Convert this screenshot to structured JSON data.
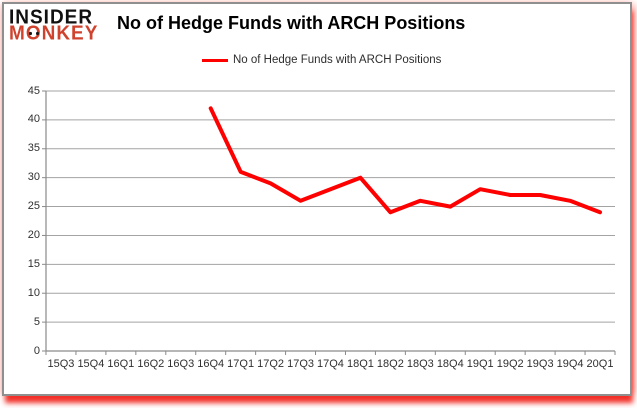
{
  "logo": {
    "line1": "INSIDER",
    "monkey_pre": "M",
    "monkey_o": "O",
    "monkey_post": "NKEY",
    "monkey_color": "#cf432e"
  },
  "title": "No of Hedge Funds with ARCH Positions",
  "legend": {
    "label": "No of Hedge Funds with ARCH Positions",
    "line_color": "#ff0000"
  },
  "colors": {
    "series_red": "#ff0000",
    "gridline": "#a3a3a3",
    "axis": "#8a8a8a",
    "tick_label": "#303030",
    "frame_border": "#8f8f8f",
    "shadow_red": "#f0160c"
  },
  "chart_data": {
    "type": "line",
    "title": "No of Hedge Funds with ARCH Positions",
    "categories": [
      "15Q3",
      "15Q4",
      "16Q1",
      "16Q2",
      "16Q3",
      "16Q4",
      "17Q1",
      "17Q2",
      "17Q3",
      "17Q4",
      "18Q1",
      "18Q2",
      "18Q3",
      "18Q4",
      "19Q1",
      "19Q2",
      "19Q3",
      "19Q4",
      "20Q1"
    ],
    "series": [
      {
        "name": "No of Hedge Funds with ARCH Positions",
        "color": "#ff0000",
        "values": [
          null,
          null,
          null,
          null,
          null,
          42,
          31,
          29,
          26,
          28,
          30,
          24,
          26,
          25,
          28,
          27,
          27,
          26,
          24
        ]
      }
    ],
    "xlabel": "",
    "ylabel": "",
    "ylim": [
      0,
      45
    ],
    "ytick_step": 5,
    "grid": true,
    "legend_position": "top"
  }
}
